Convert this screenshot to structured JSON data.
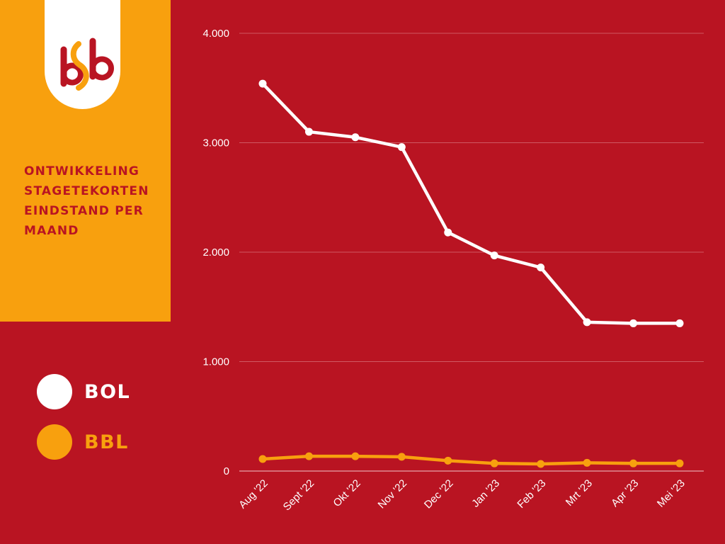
{
  "colors": {
    "background": "#b91422",
    "panel": "#f8a00e",
    "bol": "#ffffff",
    "bbl": "#f8a00e",
    "grid": "#d9707a"
  },
  "logo": {
    "icon": "sbb-logo-icon",
    "text": "sbb"
  },
  "title": "ONTWIKKELING\nSTAGETEKORTEN\nEINDSTAND PER\nMAAND",
  "legend": [
    {
      "label": "BOL",
      "color": "#ffffff"
    },
    {
      "label": "BBL",
      "color": "#f8a00e"
    }
  ],
  "chart_data": {
    "type": "line",
    "title": "ONTWIKKELING STAGETEKORTEN EINDSTAND PER MAAND",
    "xlabel": "",
    "ylabel": "",
    "categories": [
      "Aug '22",
      "Sept '22",
      "Okt '22",
      "Nov '22",
      "Dec '22",
      "Jan '23",
      "Feb '23",
      "Mrt '23",
      "Apr '23",
      "Mei '23"
    ],
    "series": [
      {
        "name": "BOL",
        "color": "#ffffff",
        "values": [
          3540,
          3100,
          3050,
          2960,
          2180,
          1970,
          1860,
          1360,
          1350,
          1350
        ]
      },
      {
        "name": "BBL",
        "color": "#f8a00e",
        "values": [
          110,
          135,
          135,
          130,
          95,
          70,
          65,
          75,
          70,
          70
        ]
      }
    ],
    "ylim": [
      0,
      4000
    ],
    "yticks": [
      0,
      1000,
      2000,
      3000,
      4000
    ],
    "ytick_labels": [
      "0",
      "1.000",
      "2.000",
      "3.000",
      "4.000"
    ],
    "grid": true,
    "legend_position": "left"
  }
}
